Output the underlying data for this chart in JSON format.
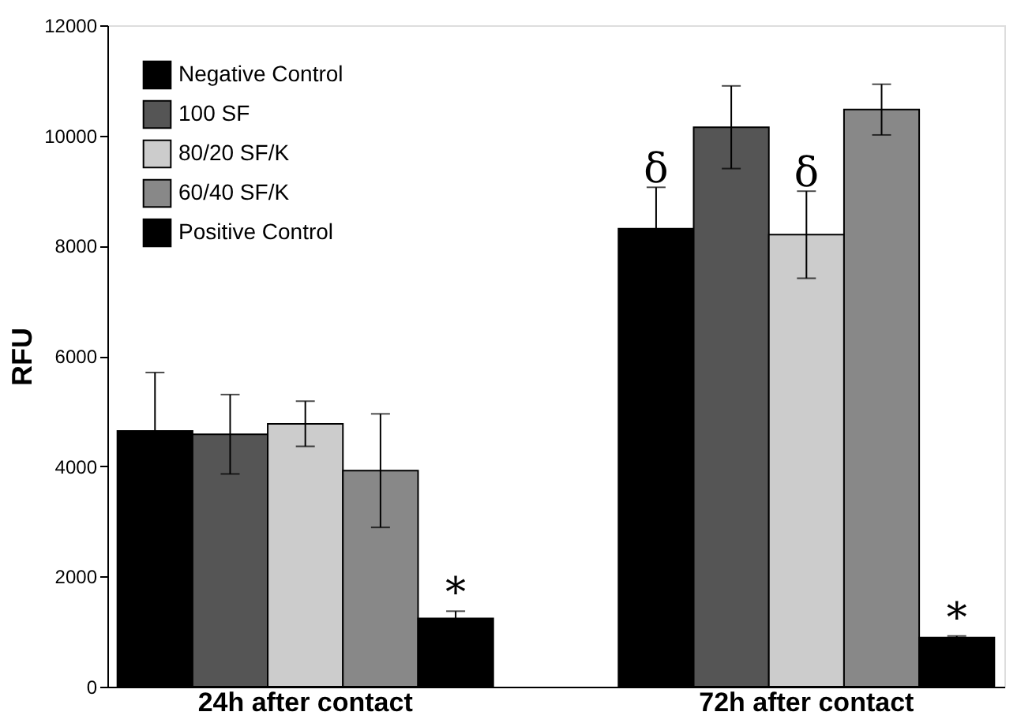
{
  "chart_data": {
    "type": "bar",
    "ylabel": "RFU",
    "categories": [
      "24h after contact",
      "72h after contact"
    ],
    "series": [
      {
        "name": "Negative Control",
        "color": "#000000",
        "values": [
          4640,
          8310
        ],
        "errors": [
          1060,
          750
        ],
        "value_labels": [
          null,
          "δ"
        ]
      },
      {
        "name": "100 SF",
        "color": "#555555",
        "values": [
          4580,
          10150
        ],
        "errors": [
          720,
          750
        ]
      },
      {
        "name": "80/20 SF/K",
        "color": "#cccccc",
        "values": [
          4770,
          8200
        ],
        "errors": [
          410,
          790
        ],
        "value_labels": [
          null,
          "δ"
        ]
      },
      {
        "name": "60/40 SF/K",
        "color": "#888888",
        "values": [
          3920,
          10470
        ],
        "errors": [
          1030,
          460
        ]
      },
      {
        "name": "Positive Control",
        "color": "#000000",
        "values": [
          1240,
          890
        ],
        "errors": [
          130,
          30
        ],
        "value_labels": [
          "*",
          "*"
        ]
      }
    ],
    "ylim": [
      0,
      12000
    ],
    "yticks": [
      0,
      2000,
      4000,
      6000,
      8000,
      10000,
      12000
    ],
    "grid": false,
    "legend": "top left"
  }
}
